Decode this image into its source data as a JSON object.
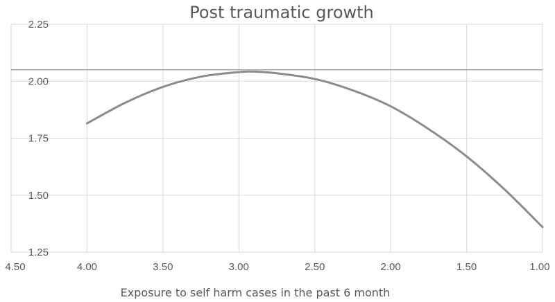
{
  "chart_data": {
    "type": "line",
    "title": "Post traumatic growth",
    "xlabel": "Exposure to self harm cases in the past 6 month",
    "ylabel": "",
    "x_reversed": true,
    "xlim": [
      4.5,
      1.0
    ],
    "ylim": [
      1.25,
      2.25
    ],
    "x_ticks": [
      "4.50",
      "4.00",
      "3.50",
      "3.00",
      "2.50",
      "2.00",
      "1.50",
      "1.00"
    ],
    "y_ticks": [
      "1.25",
      "1.50",
      "1.75",
      "2.00",
      "2.25"
    ],
    "grid": true,
    "reference_line": {
      "y": 2.05
    },
    "series": [
      {
        "x": [
          4.0,
          3.75,
          3.5,
          3.25,
          3.0,
          2.9,
          2.75,
          2.5,
          2.25,
          2.0,
          1.75,
          1.5,
          1.25,
          1.0
        ],
        "y": [
          1.815,
          1.905,
          1.975,
          2.02,
          2.04,
          2.042,
          2.035,
          2.01,
          1.96,
          1.89,
          1.79,
          1.67,
          1.525,
          1.36
        ]
      }
    ],
    "colors": {
      "line": "#8c8c8c",
      "grid": "#d9d9d9",
      "text": "#595959"
    }
  }
}
